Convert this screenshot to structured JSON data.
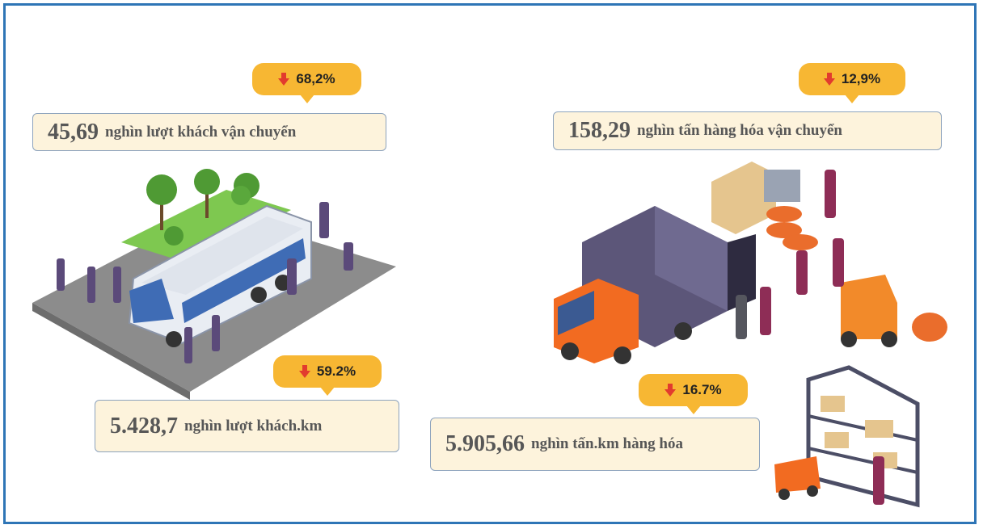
{
  "stats": [
    {
      "value": "45,69",
      "unit": "nghìn lượt khách vận chuyển",
      "change": "68,2%"
    },
    {
      "value": "158,29",
      "unit": "nghìn tấn hàng hóa vận chuyển",
      "change": "12,9%"
    },
    {
      "value": "5.428,7",
      "unit": "nghìn lượt khách.km",
      "change": "59.2%"
    },
    {
      "value": "5.905,66",
      "unit": "nghìn tấn.km hàng hóa",
      "change": "16.7%"
    }
  ]
}
